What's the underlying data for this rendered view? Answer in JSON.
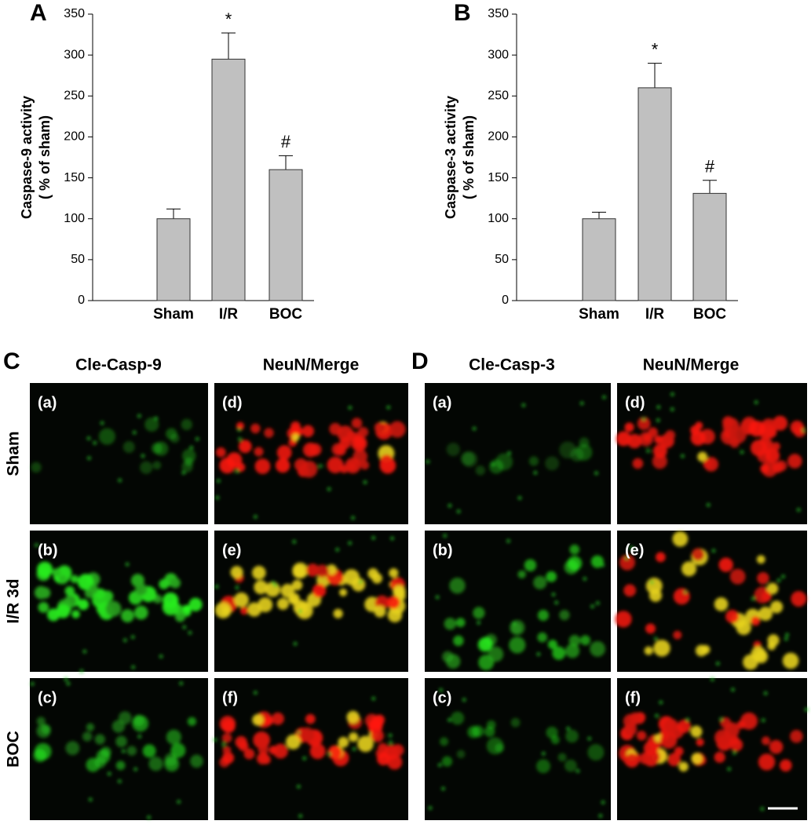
{
  "chart_data": [
    {
      "type": "bar",
      "panel_label": "A",
      "ylabel": "Caspase-9 activity",
      "ylabel_sub": "( % of sham)",
      "categories": [
        "Sham",
        "I/R",
        "BOC"
      ],
      "values": [
        100,
        295,
        160
      ],
      "errors": [
        12,
        32,
        17
      ],
      "annotations": [
        null,
        "*",
        "#"
      ],
      "color": "#c0c0c0",
      "ylim": [
        0,
        350
      ],
      "yticks": [
        0,
        50,
        100,
        150,
        200,
        250,
        300,
        350
      ]
    },
    {
      "type": "bar",
      "panel_label": "B",
      "ylabel": "Caspase-3 activity",
      "ylabel_sub": "( % of sham)",
      "categories": [
        "Sham",
        "I/R",
        "BOC"
      ],
      "values": [
        100,
        260,
        131
      ],
      "errors": [
        8,
        30,
        16
      ],
      "annotations": [
        null,
        "*",
        "#"
      ],
      "color": "#c0c0c0",
      "ylim": [
        0,
        350
      ],
      "yticks": [
        0,
        50,
        100,
        150,
        200,
        250,
        300,
        350
      ]
    }
  ],
  "panels": [
    {
      "label": "C",
      "columns": [
        "Cle-Casp-9",
        "NeuN/Merge"
      ],
      "rows": [
        "Sham",
        "I/R 3d",
        "BOC"
      ],
      "tiles": [
        "(a)",
        "(d)",
        "(b)",
        "(e)",
        "(c)",
        "(f)"
      ]
    },
    {
      "label": "D",
      "columns": [
        "Cle-Casp-3",
        "NeuN/Merge"
      ],
      "tiles": [
        "(a)",
        "(d)",
        "(b)",
        "(e)",
        "(c)",
        "(f)"
      ]
    }
  ]
}
